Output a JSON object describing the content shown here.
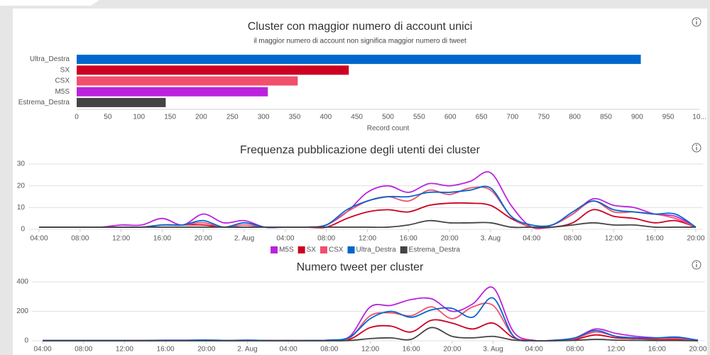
{
  "chart_data": [
    {
      "type": "bar",
      "orientation": "horizontal",
      "title": "Cluster con maggior numero di account unici",
      "subtitle": "il maggior numero di account non significa maggior numero di tweet",
      "x_label": "Record count",
      "categories": [
        "Ultra_Destra",
        "SX",
        "CSX",
        "M5S",
        "Estrema_Destra"
      ],
      "values": [
        906,
        437,
        355,
        307,
        143
      ],
      "colors": [
        "#0066cc",
        "#cc0022",
        "#f0506e",
        "#bb22dd",
        "#444444"
      ],
      "xlim": [
        0,
        1000
      ],
      "xticks": [
        0,
        50,
        100,
        150,
        200,
        250,
        300,
        350,
        400,
        450,
        500,
        550,
        600,
        650,
        700,
        750,
        800,
        850,
        900,
        950,
        {
          "value": 1000,
          "label": "10..."
        }
      ],
      "grid": false
    },
    {
      "type": "line",
      "smooth": true,
      "title": "Frequenza pubblicazione degli utenti dei cluster",
      "x": [
        "04:00",
        null,
        "08:00",
        null,
        "12:00",
        null,
        "16:00",
        null,
        "20:00",
        null,
        "2. Aug",
        null,
        "04:00",
        null,
        "08:00",
        null,
        "12:00",
        null,
        "16:00",
        null,
        "20:00",
        null,
        "3. Aug",
        null,
        "04:00",
        null,
        "08:00",
        null,
        "12:00",
        null,
        "16:00",
        null,
        "20:00"
      ],
      "series": [
        {
          "name": "M5S",
          "color": "#bb22dd",
          "values": [
            1,
            1,
            1,
            1,
            2,
            2,
            5,
            2,
            7,
            3,
            4,
            1,
            1,
            1,
            2,
            8,
            17,
            20,
            17,
            21,
            20,
            22,
            26,
            11,
            1,
            2,
            7,
            14,
            11,
            10,
            7,
            6,
            1
          ]
        },
        {
          "name": "SX",
          "color": "#cc0022",
          "values": [
            1,
            1,
            1,
            1,
            1,
            1,
            2,
            2,
            2,
            1,
            1,
            1,
            1,
            1,
            1,
            5,
            8,
            9,
            8,
            11,
            12,
            12,
            11,
            5,
            1,
            1,
            3,
            9,
            6,
            5,
            3,
            4,
            1
          ]
        },
        {
          "name": "CSX",
          "color": "#f0506e",
          "values": [
            1,
            1,
            1,
            1,
            1,
            1,
            2,
            2,
            3,
            1,
            2,
            1,
            1,
            1,
            2,
            8,
            13,
            15,
            13,
            18,
            16,
            19,
            18,
            6,
            1,
            2,
            7,
            13,
            8,
            8,
            7,
            5,
            1
          ]
        },
        {
          "name": "Ultra_Destra",
          "color": "#0066cc",
          "values": [
            1,
            1,
            1,
            1,
            1,
            1,
            2,
            2,
            4,
            1,
            3,
            1,
            1,
            1,
            2,
            9,
            13,
            15,
            15,
            17,
            17,
            18,
            19,
            6,
            2,
            2,
            8,
            13,
            9,
            8,
            7,
            7,
            1
          ]
        },
        {
          "name": "Estrema_Destra",
          "color": "#444444",
          "values": [
            1,
            1,
            1,
            1,
            1,
            1,
            1,
            1,
            1,
            1,
            1,
            1,
            1,
            1,
            1,
            1,
            1,
            1,
            2,
            4,
            3,
            3,
            3,
            1,
            1,
            1,
            2,
            3,
            2,
            2,
            1,
            1,
            1
          ]
        }
      ],
      "ylim": [
        0,
        30
      ],
      "yticks": [
        0,
        10,
        20,
        30
      ],
      "grid": true,
      "legend": "bottom"
    },
    {
      "type": "line",
      "smooth": true,
      "title": "Numero tweet per cluster",
      "x": [
        "04:00",
        null,
        "08:00",
        null,
        "12:00",
        null,
        "16:00",
        null,
        "20:00",
        null,
        "2. Aug",
        null,
        "04:00",
        null,
        "08:00",
        null,
        "12:00",
        null,
        "16:00",
        null,
        "20:00",
        null,
        "3. Aug",
        null,
        "04:00",
        null,
        "08:00",
        null,
        "12:00",
        null,
        "16:00",
        null,
        "20:00"
      ],
      "series": [
        {
          "color": "#bb22dd",
          "values": [
            3,
            3,
            3,
            3,
            3,
            3,
            4,
            4,
            5,
            3,
            4,
            2,
            2,
            2,
            5,
            30,
            230,
            240,
            280,
            285,
            200,
            250,
            360,
            60,
            3,
            5,
            20,
            80,
            50,
            30,
            20,
            20,
            5
          ]
        },
        {
          "color": "#cc0022",
          "values": [
            1,
            1,
            1,
            1,
            1,
            1,
            2,
            2,
            2,
            1,
            2,
            1,
            1,
            1,
            2,
            10,
            90,
            100,
            60,
            140,
            120,
            80,
            120,
            20,
            1,
            2,
            10,
            40,
            20,
            15,
            10,
            10,
            2
          ]
        },
        {
          "color": "#f0506e",
          "values": [
            2,
            2,
            2,
            2,
            2,
            2,
            3,
            3,
            4,
            2,
            3,
            2,
            2,
            2,
            4,
            20,
            170,
            190,
            170,
            230,
            150,
            230,
            240,
            30,
            2,
            3,
            15,
            60,
            30,
            20,
            15,
            15,
            3
          ]
        },
        {
          "color": "#0066cc",
          "values": [
            2,
            2,
            2,
            2,
            2,
            2,
            3,
            3,
            5,
            2,
            4,
            2,
            2,
            2,
            5,
            25,
            150,
            200,
            160,
            210,
            220,
            160,
            290,
            30,
            2,
            3,
            20,
            70,
            30,
            20,
            20,
            25,
            3
          ]
        },
        {
          "color": "#444444",
          "values": [
            0,
            0,
            0,
            0,
            0,
            0,
            0,
            0,
            0,
            0,
            0,
            0,
            0,
            0,
            0,
            2,
            15,
            20,
            10,
            90,
            30,
            20,
            30,
            5,
            0,
            0,
            3,
            10,
            5,
            3,
            2,
            2,
            0
          ]
        }
      ],
      "ylim": [
        0,
        400
      ],
      "yticks": [
        0,
        200,
        400
      ],
      "grid": true
    }
  ]
}
